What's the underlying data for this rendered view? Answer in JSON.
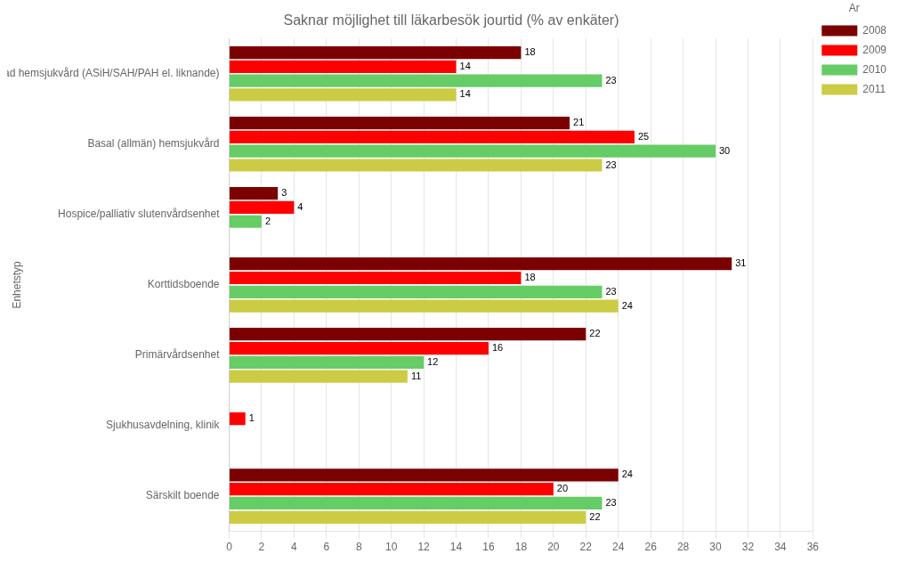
{
  "chart_data": {
    "type": "bar",
    "orientation": "horizontal",
    "title": "Saknar möjlighet till läkarbesök jourtid (% av enkäter)",
    "ylabel": "Enhetstyp",
    "categories": [
      "Avancerad hemsjukvård (ASiH/SAH/PAH el. liknande)",
      "Basal (allmän) hemsjukvård",
      "Hospice/palliativ slutenvårdsenhet",
      "Korttidsboende",
      "Primärvårdsenhet",
      "Sjukhusavdelning, klinik",
      "Särskilt boende"
    ],
    "series": [
      {
        "name": "2008",
        "color": "#7b0000",
        "values": [
          18,
          21,
          3,
          31,
          22,
          0,
          24
        ]
      },
      {
        "name": "2009",
        "color": "#ff0000",
        "values": [
          14,
          25,
          4,
          18,
          16,
          1,
          20
        ]
      },
      {
        "name": "2010",
        "color": "#66cc66",
        "values": [
          23,
          30,
          2,
          23,
          12,
          0,
          23
        ]
      },
      {
        "name": "2011",
        "color": "#cccc44",
        "values": [
          14,
          23,
          0,
          24,
          11,
          0,
          22
        ]
      }
    ],
    "xlim": [
      0,
      36
    ],
    "xticks": [
      0,
      2,
      4,
      6,
      8,
      10,
      12,
      14,
      16,
      18,
      20,
      22,
      24,
      26,
      28,
      30,
      32,
      34,
      36
    ],
    "grid": true,
    "legend": "upper right",
    "legend_title": "År",
    "data_labels": true
  }
}
